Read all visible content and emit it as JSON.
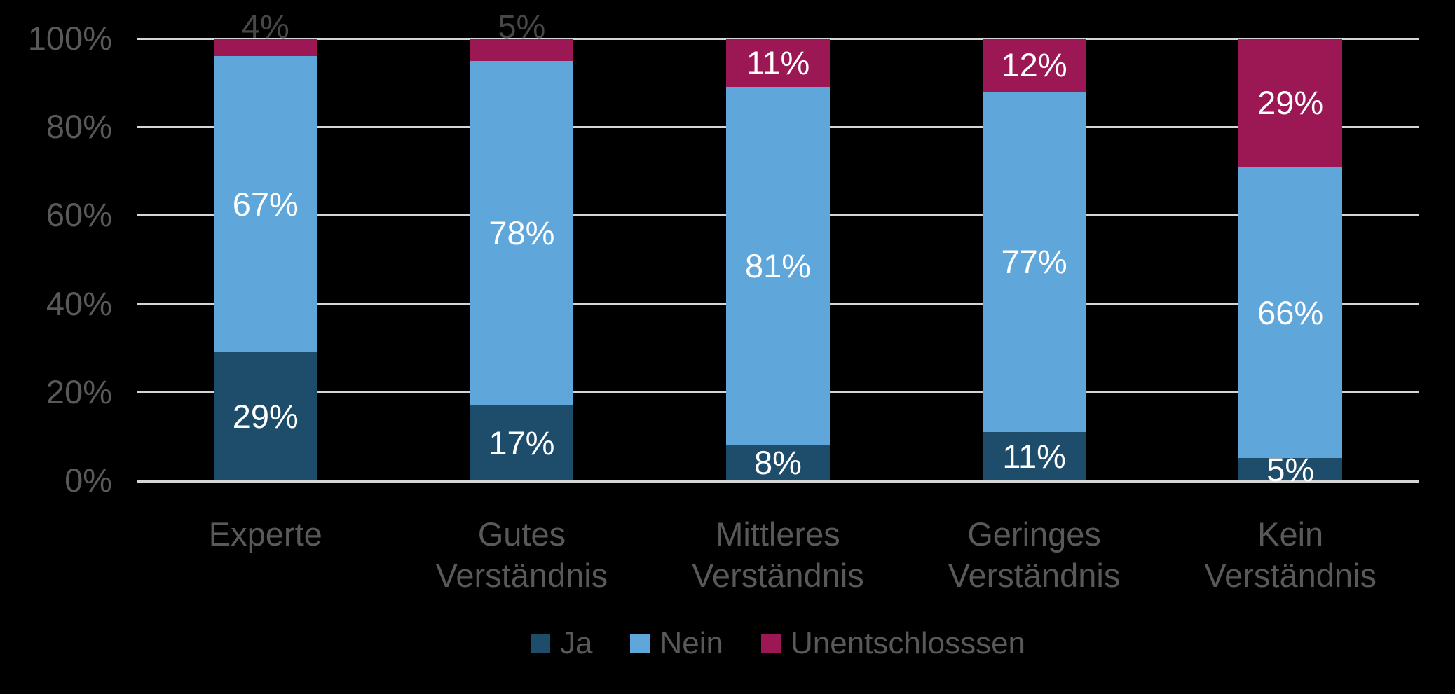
{
  "chart": {
    "background_color": "#000000",
    "grid_color": "#D5D5D5",
    "axis_text_color": "#595959",
    "outside_label_color": "#474747",
    "value_label_color": "#FFFFFF"
  },
  "chart_data": {
    "type": "bar",
    "stacked": true,
    "orientation": "vertical",
    "title": "",
    "xlabel": "",
    "ylabel": "",
    "categories": [
      "Experte",
      "Gutes Verständnis",
      "Mittleres Verständnis",
      "Geringes Verständnis",
      "Kein Verständnis"
    ],
    "series": [
      {
        "name": "Ja",
        "color": "#1E4C6B",
        "values": [
          29,
          17,
          8,
          11,
          5
        ]
      },
      {
        "name": "Nein",
        "color": "#5FA6DA",
        "values": [
          67,
          78,
          81,
          77,
          66
        ]
      },
      {
        "name": "Unentschlosssen",
        "color": "#9B1854",
        "values": [
          4,
          5,
          11,
          12,
          29
        ]
      }
    ],
    "value_suffix": "%",
    "data_labels": [
      [
        "29%",
        "17%",
        "8%",
        "11%",
        "5%"
      ],
      [
        "67%",
        "78%",
        "81%",
        "77%",
        "66%"
      ],
      [
        "4%",
        "5%",
        "11%",
        "12%",
        "29%"
      ]
    ],
    "y_ticks": [
      "0%",
      "20%",
      "40%",
      "60%",
      "80%",
      "100%"
    ],
    "y_tick_values": [
      0,
      20,
      40,
      60,
      80,
      100
    ],
    "ylim": [
      0,
      100
    ],
    "grid": true,
    "legend_position": "bottom",
    "legend_entries": [
      "Ja",
      "Nein",
      "Unentschlosssen"
    ]
  }
}
